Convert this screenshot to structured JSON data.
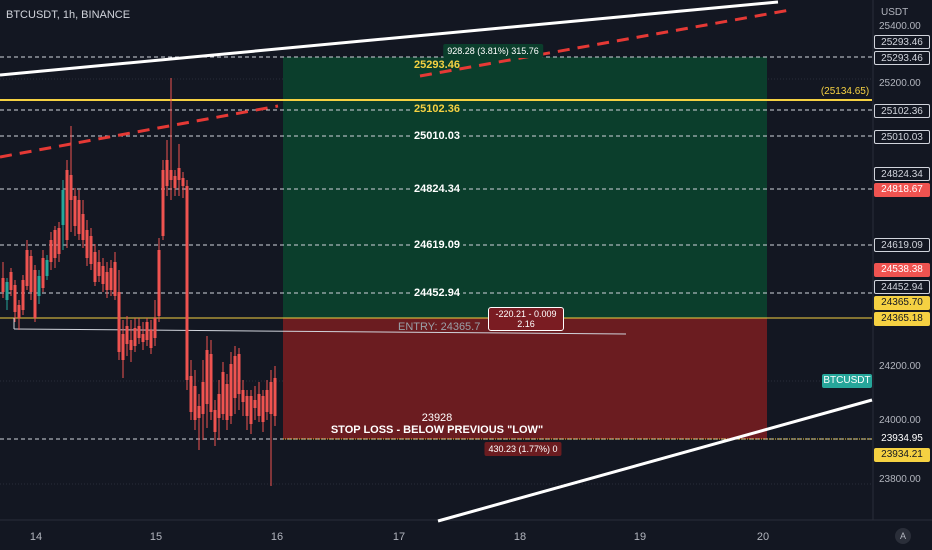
{
  "header": {
    "symbol": "BTCUSDT, 1h, BINANCE",
    "currency": "USDT"
  },
  "colors": {
    "bg": "#131722",
    "up": "#26a69a",
    "down": "#ef5350",
    "profit": "#0b3e2c",
    "loss": "#6b1c20",
    "white": "#ffffff",
    "yellow": "#f5d142",
    "red_dash": "#e53935"
  },
  "price_scale_labels": [
    "25400.00",
    "25200.00",
    "24200.00",
    "24000.00",
    "23800.00"
  ],
  "x_axis_labels": [
    "14",
    "15",
    "16",
    "17",
    "18",
    "19",
    "20"
  ],
  "price_tags": [
    {
      "text": "25293.46",
      "style": "dark"
    },
    {
      "text": "25293.46",
      "style": "dark"
    },
    {
      "text": "(25134.65)",
      "style": "yellow-text"
    },
    {
      "text": "25102.36",
      "style": "dark"
    },
    {
      "text": "25010.03",
      "style": "dark"
    },
    {
      "text": "24824.34",
      "style": "dark"
    },
    {
      "text": "24818.67",
      "style": "red"
    },
    {
      "text": "24619.09",
      "style": "dark"
    },
    {
      "text": "24538.38",
      "style": "red"
    },
    {
      "text": "24452.94",
      "style": "dark"
    },
    {
      "text": "24365.70",
      "style": "yellow"
    },
    {
      "text": "24365.18",
      "style": "yellow"
    },
    {
      "text": "BTCUSDT",
      "style": "teal"
    },
    {
      "text": "23934.95",
      "style": "dark-white"
    },
    {
      "text": "23934.21",
      "style": "yellow"
    }
  ],
  "fib_levels": [
    "25293.46",
    "25102.36",
    "25010.03",
    "24824.34",
    "24619.09",
    "24452.94"
  ],
  "position": {
    "target_stats": "928.28 (3.81%) 315.76",
    "entry_text": "ENTRY: 24365.7",
    "center_box_line1": "-220.21 - 0.009",
    "center_box_line2": "2.16",
    "stop_value": "23928",
    "stop_text": "STOP LOSS - BELOW PREVIOUS \"LOW\"",
    "stop_stats": "430.23 (1.77%) 0"
  },
  "auto_label": "A"
}
